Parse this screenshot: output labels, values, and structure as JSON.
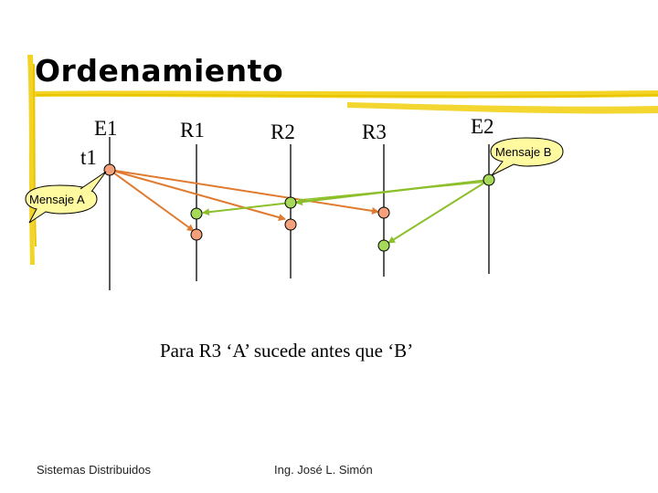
{
  "title": "Ordenamiento",
  "processes": {
    "e1": "E1",
    "r1": "R1",
    "r2": "R2",
    "r3": "R3",
    "e2": "E2"
  },
  "time_label": "t1",
  "message_a": "Mensaje A",
  "message_b": "Mensaje B",
  "caption": "Para R3 ‘A’ sucede antes que ‘B’",
  "footer": {
    "left": "Sistemas Distribuidos",
    "center": "Ing. José L. Simón"
  },
  "colors": {
    "orange": "#e07a2e",
    "green": "#8cbf2a",
    "yellow": "#f2d21a",
    "bubble": "#fff9a0"
  }
}
